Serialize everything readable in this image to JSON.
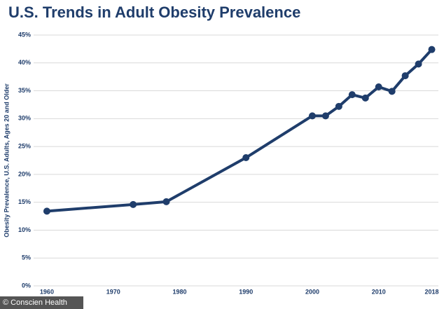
{
  "chart_data": {
    "type": "line",
    "title": "U.S. Trends in Adult Obesity Prevalence",
    "y_label": "Obesity Prevalence, U.S. Adults, Ages 20 and Older",
    "credit": "© Conscien Health",
    "x": [
      1960,
      1973,
      1978,
      1990,
      2000,
      2002,
      2004,
      2006,
      2008,
      2010,
      2012,
      2014,
      2016,
      2018
    ],
    "series": [
      {
        "name": "Obesity prevalence",
        "color": "#1f3d6b",
        "values": [
          13.4,
          14.6,
          15.1,
          23.0,
          30.5,
          30.5,
          32.2,
          34.3,
          33.7,
          35.7,
          34.9,
          37.7,
          39.8,
          42.4
        ]
      }
    ],
    "xlim": [
      1958,
      2019
    ],
    "xticks": [
      1960,
      1970,
      1980,
      1990,
      2000,
      2010,
      2018
    ],
    "ylim": [
      0,
      45
    ],
    "yticks": [
      {
        "value": 0,
        "label": "0%"
      },
      {
        "value": 5,
        "label": "5%"
      },
      {
        "value": 10,
        "label": "10%"
      },
      {
        "value": 15,
        "label": "15%"
      },
      {
        "value": 20,
        "label": "20%"
      },
      {
        "value": 25,
        "label": "25%"
      },
      {
        "value": 30,
        "label": "30%"
      },
      {
        "value": 35,
        "label": "35%"
      },
      {
        "value": 40,
        "label": "40%"
      },
      {
        "value": 45,
        "label": "45%"
      }
    ],
    "grid": true
  }
}
